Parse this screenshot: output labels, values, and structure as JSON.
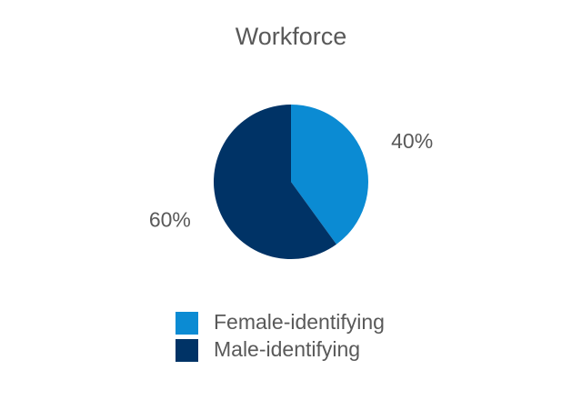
{
  "chart_data": {
    "type": "pie",
    "title": "Workforce",
    "categories": [
      "Female-identifying",
      "Male-identifying"
    ],
    "values": [
      40,
      60
    ],
    "value_labels": [
      "40%",
      "60%"
    ],
    "colors": [
      "#0b8bd3",
      "#003366"
    ]
  }
}
